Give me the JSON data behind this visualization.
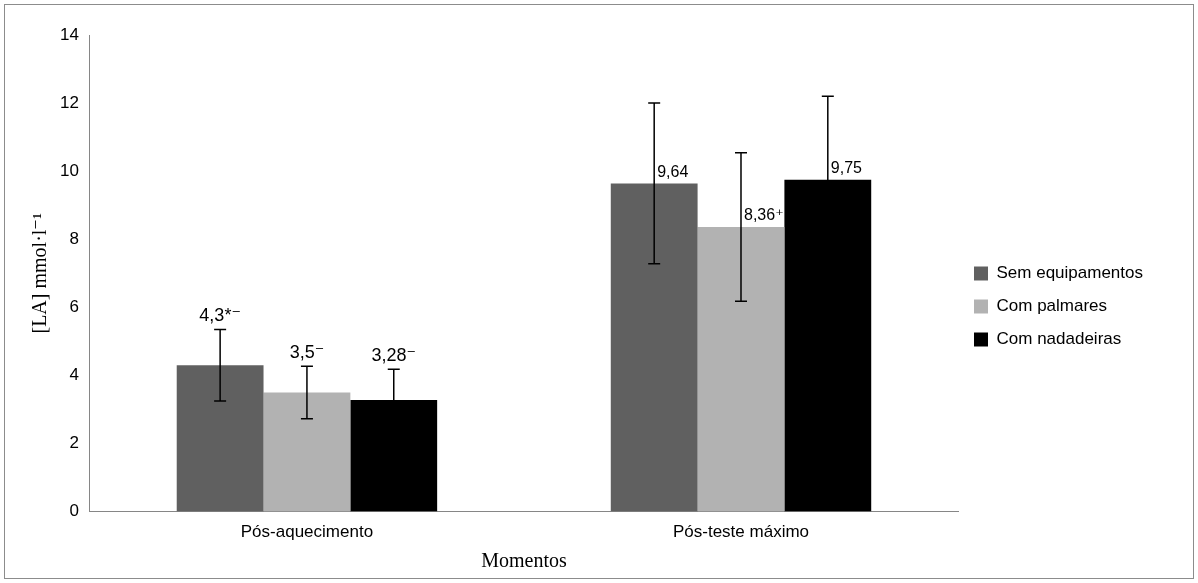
{
  "chart_data": {
    "type": "bar",
    "ylabel": "[LA] mmol·l⁻¹",
    "xlabel": "Momentos",
    "categories": [
      "Pós-aquecimento",
      "Pós-teste máximo"
    ],
    "series": [
      {
        "name": "Sem equipamentos",
        "color": "#606060",
        "values": [
          4.3,
          9.64
        ],
        "errors": [
          1.05,
          2.36
        ],
        "value_labels": [
          "4,3*⁻",
          "9,64"
        ]
      },
      {
        "name": "Com palmares",
        "color": "#b2b2b2",
        "values": [
          3.5,
          8.36
        ],
        "errors": [
          0.77,
          2.18
        ],
        "value_labels": [
          "3,5⁻",
          "8,36⁺"
        ]
      },
      {
        "name": "Com nadadeiras",
        "color": "#000000",
        "values": [
          3.28,
          9.75
        ],
        "errors": [
          0.9,
          2.45
        ],
        "value_labels": [
          "3,28⁻",
          "9,75"
        ]
      }
    ],
    "ylim": [
      0,
      14
    ],
    "yticks": [
      0,
      2,
      4,
      6,
      8,
      10,
      12,
      14
    ],
    "grid": false,
    "legend": "right"
  }
}
